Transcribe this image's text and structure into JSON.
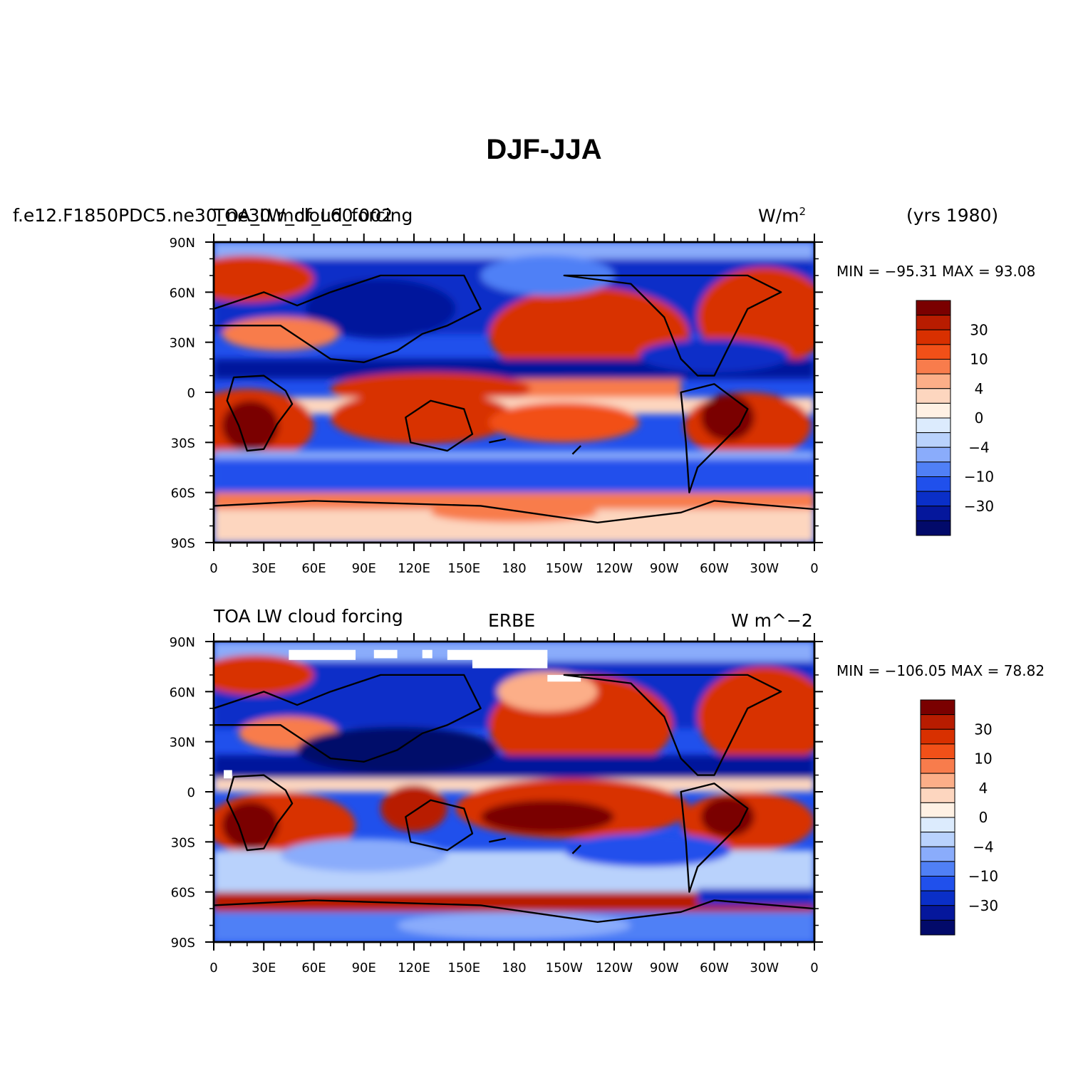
{
  "title": "DJF-JJA",
  "panels": [
    {
      "id": "model",
      "case_name": "f.e12.F1850PDC5.ne30_ne30.mdf_L60.002",
      "variable_label": "TOA_LW_cloud_forcing",
      "units": "W/m",
      "units_superscript": "2",
      "years": "(yrs 1980)",
      "stats": "MIN = −95.31  MAX =  93.08",
      "colorbar_labels": [
        "30",
        "10",
        "4",
        "0",
        "−4",
        "−10",
        "−30"
      ]
    },
    {
      "id": "obs",
      "variable_label": "TOA LW cloud forcing",
      "center_label": "ERBE",
      "units": "W m^−2",
      "stats": "MIN = −106.05  MAX =  78.82",
      "colorbar_labels": [
        "30",
        "10",
        "4",
        "0",
        "−4",
        "−10",
        "−30"
      ]
    }
  ],
  "axes": {
    "lat_ticks": [
      "90N",
      "60N",
      "30N",
      "0",
      "30S",
      "60S",
      "90S"
    ],
    "lon_ticks": [
      "0",
      "30E",
      "60E",
      "90E",
      "120E",
      "150E",
      "180",
      "150W",
      "120W",
      "90W",
      "60W",
      "30W",
      "0"
    ]
  },
  "palette": [
    "#7a0000",
    "#b81c00",
    "#d83000",
    "#f25018",
    "#f87c4c",
    "#fcae88",
    "#fdd6bf",
    "#fff1e4",
    "#dcebfd",
    "#b9d2fc",
    "#8aacfb",
    "#5080f6",
    "#2050ec",
    "#0a2fc8",
    "#05179c",
    "#020a6a"
  ],
  "chart_data": [
    {
      "type": "heatmap",
      "title": "TOA_LW_cloud_forcing (model) DJF-JJA",
      "x_range": [
        0,
        360
      ],
      "y_range": [
        -90,
        90
      ],
      "x_unit": "degrees longitude east",
      "y_unit": "degrees latitude",
      "contour_levels": [
        -40,
        -30,
        -20,
        -10,
        -6,
        -4,
        -2,
        0,
        2,
        4,
        6,
        10,
        20,
        30,
        40
      ],
      "min": -95.31,
      "max": 93.08,
      "units": "W/m2"
    },
    {
      "type": "heatmap",
      "title": "TOA LW cloud forcing ERBE DJF-JJA",
      "x_range": [
        0,
        360
      ],
      "y_range": [
        -90,
        90
      ],
      "x_unit": "degrees longitude east",
      "y_unit": "degrees latitude",
      "contour_levels": [
        -40,
        -30,
        -20,
        -10,
        -6,
        -4,
        -2,
        0,
        2,
        4,
        6,
        10,
        20,
        30,
        40
      ],
      "min": -106.05,
      "max": 78.82,
      "units": "W m^-2"
    }
  ]
}
